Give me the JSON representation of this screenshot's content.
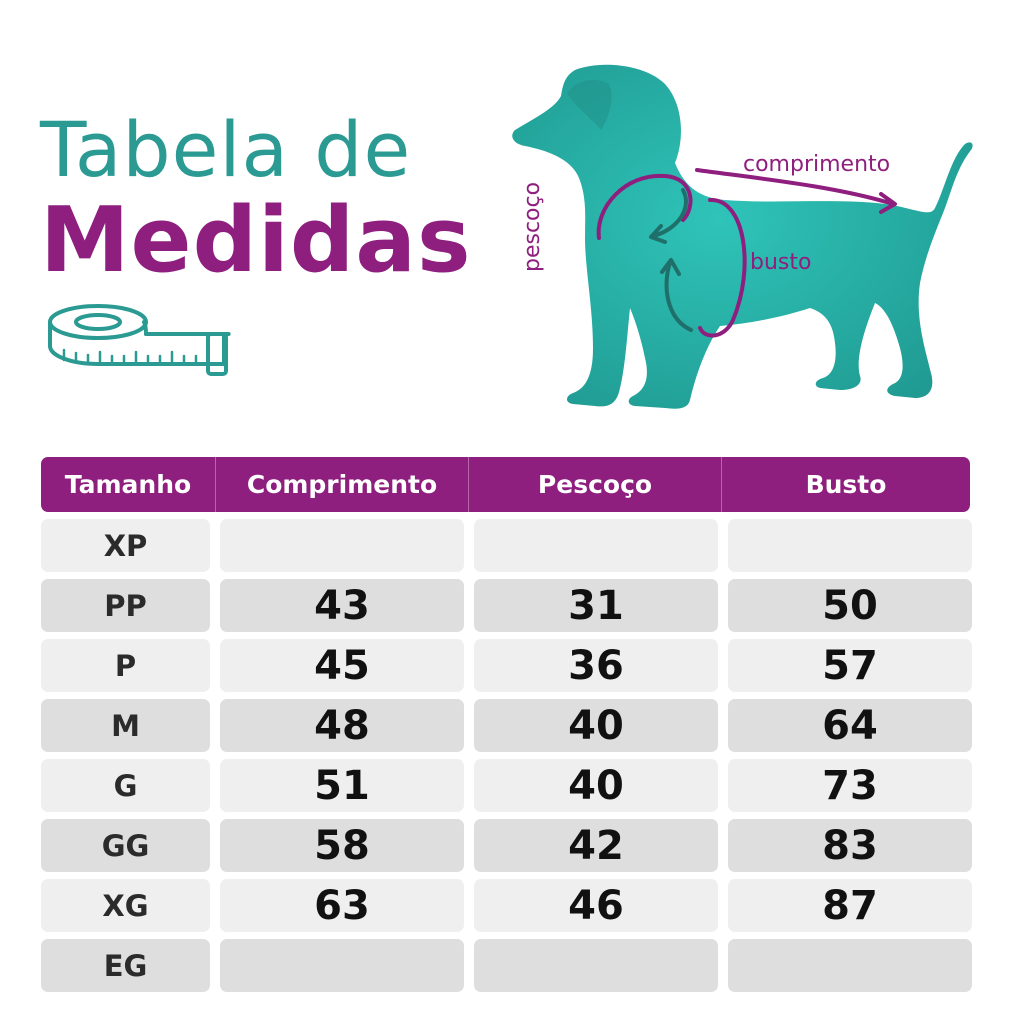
{
  "title": {
    "line1": "Tabela de",
    "line2": "Medidas"
  },
  "diagram": {
    "labels": {
      "comprimento": "comprimento",
      "busto": "busto",
      "pescoco": "pescoço"
    },
    "colors": {
      "dog": "#2ab3aa",
      "accent": "#8e1f7e",
      "teal_text": "#2a9a92"
    }
  },
  "table": {
    "headers": [
      "Tamanho",
      "Comprimento",
      "Pescoço",
      "Busto"
    ],
    "rows": [
      {
        "size": "XP",
        "comprimento": "",
        "pescoco": "",
        "busto": ""
      },
      {
        "size": "PP",
        "comprimento": "43",
        "pescoco": "31",
        "busto": "50"
      },
      {
        "size": "P",
        "comprimento": "45",
        "pescoco": "36",
        "busto": "57"
      },
      {
        "size": "M",
        "comprimento": "48",
        "pescoco": "40",
        "busto": "64"
      },
      {
        "size": "G",
        "comprimento": "51",
        "pescoco": "40",
        "busto": "73"
      },
      {
        "size": "GG",
        "comprimento": "58",
        "pescoco": "42",
        "busto": "83"
      },
      {
        "size": "XG",
        "comprimento": "63",
        "pescoco": "46",
        "busto": "87"
      },
      {
        "size": "EG",
        "comprimento": "",
        "pescoco": "",
        "busto": ""
      }
    ]
  }
}
